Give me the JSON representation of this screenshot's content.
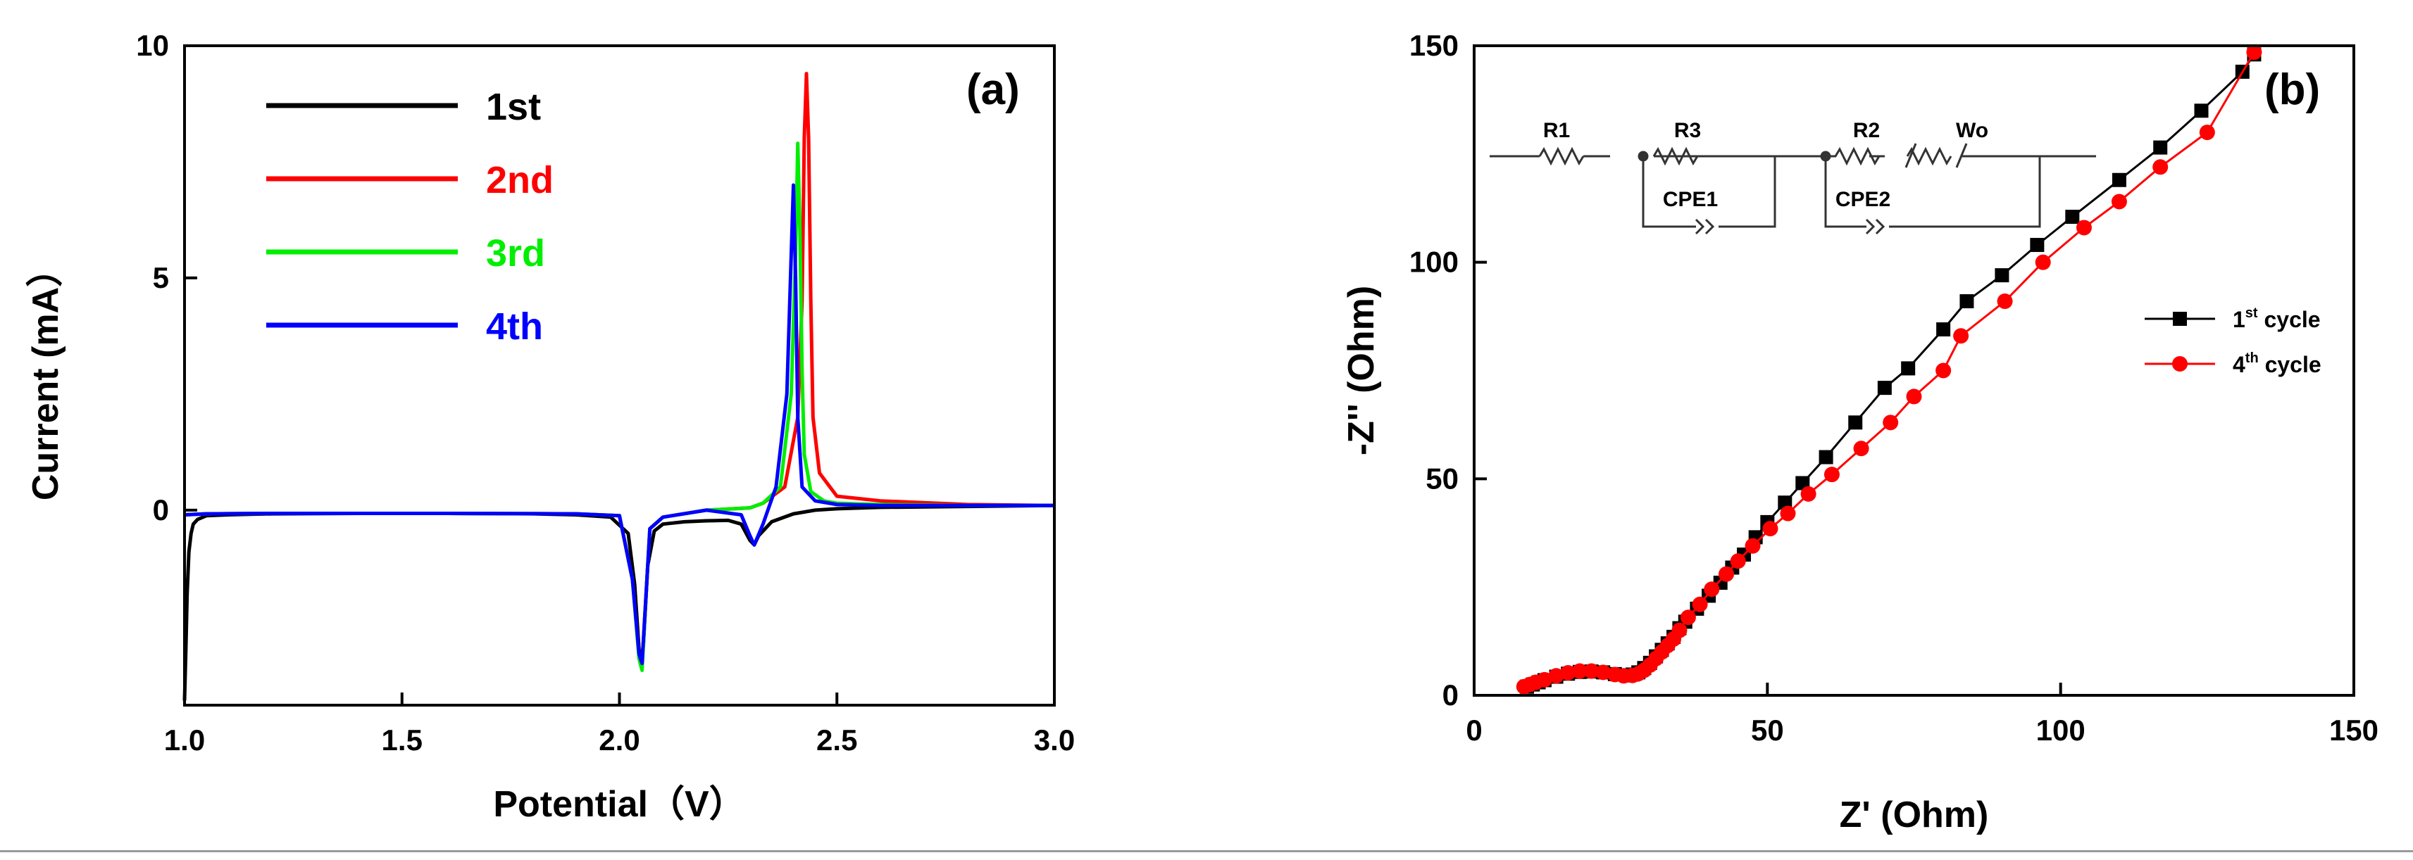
{
  "chart_data": [
    {
      "id": "a",
      "type": "line",
      "panel_label": "(a)",
      "xlabel": "Potential（V）",
      "ylabel": "Current (mA）",
      "xlim": [
        1.0,
        3.0
      ],
      "ylim": [
        -4.2,
        10
      ],
      "xticks": [
        1.0,
        1.5,
        2.0,
        2.5,
        3.0
      ],
      "xtick_labels": [
        "1.0",
        "1.5",
        "2.0",
        "2.5",
        "3.0"
      ],
      "yticks": [
        0,
        5,
        10
      ],
      "ytick_labels": [
        "0",
        "5",
        "10"
      ],
      "legend_position": "top-left",
      "series": [
        {
          "name": "1st",
          "color": "#000000",
          "x": [
            1.0,
            1.003,
            1.006,
            1.01,
            1.015,
            1.02,
            1.03,
            1.05,
            1.1,
            1.2,
            1.4,
            1.6,
            1.8,
            1.9,
            1.98,
            2.02,
            2.035,
            2.045,
            2.05,
            2.055,
            2.065,
            2.08,
            2.1,
            2.15,
            2.2,
            2.25,
            2.28,
            2.3,
            2.31,
            2.32,
            2.35,
            2.4,
            2.45,
            2.5,
            2.6,
            2.8,
            3.0
          ],
          "y": [
            -4.1,
            -3.0,
            -1.8,
            -0.9,
            -0.5,
            -0.3,
            -0.2,
            -0.12,
            -0.1,
            -0.08,
            -0.07,
            -0.07,
            -0.08,
            -0.1,
            -0.15,
            -0.5,
            -1.6,
            -3.0,
            -3.25,
            -2.9,
            -1.2,
            -0.45,
            -0.3,
            -0.25,
            -0.23,
            -0.22,
            -0.3,
            -0.65,
            -0.75,
            -0.55,
            -0.25,
            -0.08,
            0.0,
            0.03,
            0.06,
            0.08,
            0.1
          ]
        },
        {
          "name": "2nd",
          "color": "#ff0000",
          "x": [
            1.0,
            1.05,
            1.2,
            1.6,
            1.9,
            2.0,
            2.03,
            2.045,
            2.052,
            2.06,
            2.07,
            2.1,
            2.2,
            2.3,
            2.33,
            2.38,
            2.41,
            2.42,
            2.425,
            2.43,
            2.435,
            2.44,
            2.445,
            2.46,
            2.5,
            2.6,
            2.8,
            3.0
          ],
          "y": [
            -0.1,
            -0.08,
            -0.07,
            -0.07,
            -0.08,
            -0.12,
            -1.5,
            -3.1,
            -3.3,
            -2.0,
            -0.4,
            -0.15,
            0.0,
            0.05,
            0.15,
            0.5,
            2.0,
            4.5,
            8.0,
            9.4,
            8.0,
            4.5,
            2.0,
            0.8,
            0.3,
            0.2,
            0.12,
            0.1
          ]
        },
        {
          "name": "3rd",
          "color": "#00ee00",
          "x": [
            1.0,
            1.05,
            1.2,
            1.6,
            1.9,
            2.0,
            2.03,
            2.045,
            2.052,
            2.06,
            2.07,
            2.1,
            2.2,
            2.3,
            2.33,
            2.37,
            2.395,
            2.405,
            2.41,
            2.415,
            2.42,
            2.425,
            2.44,
            2.47,
            2.5,
            2.6,
            2.8,
            3.0
          ],
          "y": [
            -0.1,
            -0.08,
            -0.07,
            -0.07,
            -0.08,
            -0.12,
            -1.5,
            -3.2,
            -3.45,
            -2.0,
            -0.4,
            -0.15,
            0.0,
            0.05,
            0.15,
            0.5,
            2.5,
            5.5,
            7.9,
            6.0,
            3.0,
            1.2,
            0.4,
            0.2,
            0.15,
            0.12,
            0.1,
            0.1
          ]
        },
        {
          "name": "4th",
          "color": "#0000ff",
          "x": [
            1.0,
            1.05,
            1.2,
            1.6,
            1.9,
            2.0,
            2.03,
            2.045,
            2.052,
            2.06,
            2.07,
            2.1,
            2.2,
            2.28,
            2.3,
            2.31,
            2.33,
            2.36,
            2.385,
            2.395,
            2.4,
            2.405,
            2.41,
            2.42,
            2.45,
            2.5,
            2.6,
            2.8,
            3.0
          ],
          "y": [
            -0.1,
            -0.08,
            -0.07,
            -0.07,
            -0.08,
            -0.12,
            -1.5,
            -3.1,
            -3.3,
            -2.0,
            -0.4,
            -0.15,
            0.0,
            -0.1,
            -0.55,
            -0.75,
            -0.3,
            0.5,
            2.5,
            5.5,
            7.0,
            5.0,
            2.0,
            0.5,
            0.2,
            0.12,
            0.1,
            0.1,
            0.1
          ]
        }
      ]
    },
    {
      "id": "b",
      "type": "scatter",
      "panel_label": "(b)",
      "xlabel": "Z' (Ohm)",
      "ylabel": "-Z'' (Ohm)",
      "xlim": [
        0,
        150
      ],
      "ylim": [
        0,
        150
      ],
      "xticks": [
        0,
        50,
        100,
        150
      ],
      "xtick_labels": [
        "0",
        "50",
        "100",
        "150"
      ],
      "yticks": [
        0,
        50,
        100,
        150
      ],
      "ytick_labels": [
        "0",
        "50",
        "100",
        "150"
      ],
      "legend_position": "right",
      "series": [
        {
          "name": "cycle",
          "sup": "st",
          "num": "1",
          "marker": "square",
          "color": "#000000",
          "x": [
            9,
            10,
            11,
            12,
            14,
            16,
            18,
            20,
            22,
            24,
            26,
            27,
            28,
            29,
            30,
            31,
            32,
            33,
            34,
            35,
            36,
            38,
            40,
            42,
            44,
            46,
            48,
            50,
            53,
            56,
            60,
            65,
            70,
            74,
            80,
            84,
            90,
            96,
            102,
            110,
            117,
            124,
            131,
            133
          ],
          "y": [
            2.0,
            2.5,
            3.0,
            3.5,
            4.3,
            5.0,
            5.4,
            5.5,
            5.3,
            4.9,
            4.6,
            4.8,
            5.3,
            6.3,
            7.5,
            9.0,
            10.5,
            12.0,
            13.5,
            15.5,
            17.0,
            20.0,
            23.0,
            26.0,
            29.5,
            32.5,
            36.5,
            40.0,
            44.5,
            49.0,
            55.0,
            63.0,
            71.0,
            75.5,
            84.5,
            91.0,
            97.0,
            104.0,
            110.5,
            119.0,
            126.5,
            135.0,
            144.0,
            148.0
          ]
        },
        {
          "name": "cycle",
          "sup": "th",
          "num": "4",
          "marker": "circle",
          "color": "#ff0000",
          "x": [
            8.5,
            9.5,
            10.5,
            12,
            14,
            16,
            18,
            20,
            22,
            24,
            25.5,
            27,
            28,
            29,
            30,
            31,
            32,
            33,
            34,
            35,
            36.5,
            38.5,
            40.5,
            43,
            45,
            47.5,
            50.5,
            53.5,
            57,
            61,
            66,
            71,
            75,
            80,
            83,
            90.5,
            97,
            104,
            110,
            117,
            125,
            133
          ],
          "y": [
            2.0,
            2.5,
            3.0,
            3.6,
            4.5,
            5.2,
            5.6,
            5.6,
            5.3,
            4.8,
            4.5,
            4.6,
            5.0,
            5.8,
            7.0,
            8.5,
            10.0,
            11.5,
            13.0,
            15.0,
            18.0,
            21.0,
            24.5,
            28.0,
            31.0,
            34.5,
            38.5,
            42.0,
            46.5,
            51.0,
            57.0,
            63.0,
            69.0,
            75.0,
            83.0,
            91.0,
            100.0,
            108.0,
            114.0,
            122.0,
            130.0,
            148.5
          ]
        }
      ],
      "inset_circuit": {
        "labels": [
          "R1",
          "R3",
          "CPE1",
          "R2",
          "Wo",
          "CPE2"
        ]
      }
    }
  ]
}
